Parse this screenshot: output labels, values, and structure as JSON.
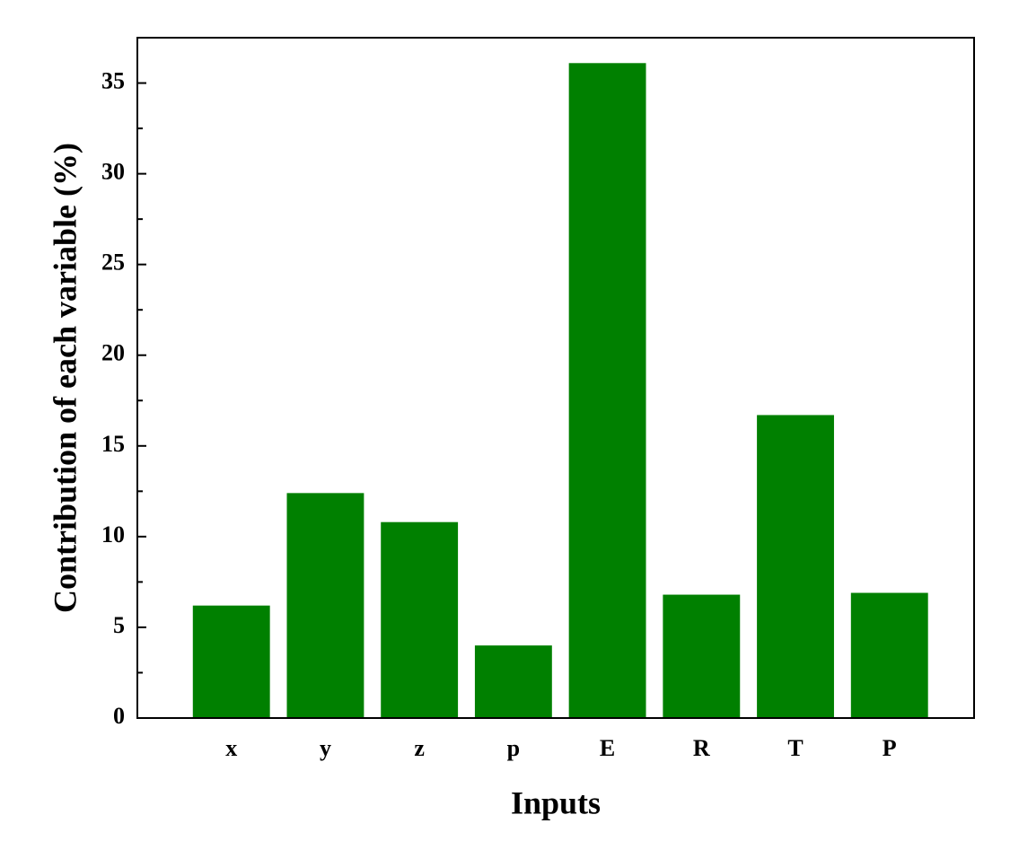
{
  "chart_data": {
    "type": "bar",
    "x_label": "Inputs",
    "y_label": "Contribution of each variable (%)",
    "categories": [
      "x",
      "y",
      "z",
      "p",
      "E",
      "R",
      "T",
      "P"
    ],
    "values": [
      6.2,
      12.4,
      10.8,
      4.0,
      36.1,
      6.8,
      16.7,
      6.9
    ],
    "color": "#008000",
    "ylim": [
      0,
      37.5
    ],
    "yticks": [
      0,
      5,
      10,
      15,
      20,
      25,
      30,
      35
    ],
    "grid": false
  }
}
